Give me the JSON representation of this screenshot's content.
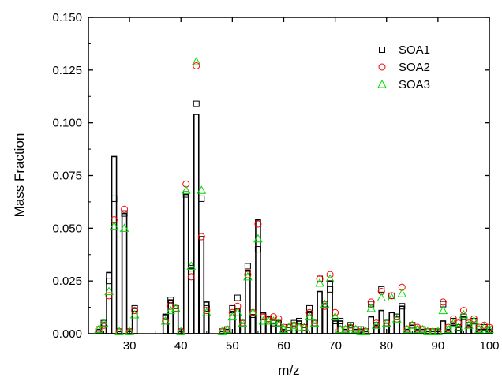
{
  "chart_data": {
    "type": "bar",
    "xlabel": "m/z",
    "ylabel": "Mass Fraction",
    "xlim": [
      22,
      100
    ],
    "ylim": [
      0,
      0.15
    ],
    "x_ticks": [
      "30",
      "40",
      "50",
      "60",
      "70",
      "80",
      "90",
      "100"
    ],
    "y_ticks": [
      "0.000",
      "0.025",
      "0.050",
      "0.075",
      "0.100",
      "0.125",
      "0.150"
    ],
    "grid": false,
    "legend_position": "top-right",
    "bars": {
      "description_series": "SOA1",
      "x": [
        24,
        25,
        26,
        27,
        28,
        29,
        30,
        31,
        37,
        38,
        39,
        40,
        41,
        42,
        43,
        44,
        45,
        48,
        49,
        50,
        51,
        52,
        53,
        54,
        55,
        56,
        57,
        58,
        59,
        60,
        61,
        62,
        63,
        64,
        65,
        66,
        67,
        68,
        69,
        70,
        71,
        72,
        73,
        74,
        75,
        76,
        77,
        78,
        79,
        80,
        81,
        82,
        83,
        84,
        85,
        86,
        87,
        88,
        89,
        90,
        91,
        92,
        93,
        94,
        95,
        96,
        97,
        98,
        99,
        100
      ],
      "values": [
        0.002,
        0.005,
        0.029,
        0.084,
        0.001,
        0.057,
        0.001,
        0.012,
        0.009,
        0.016,
        0.012,
        0.001,
        0.066,
        0.031,
        0.104,
        0.046,
        0.015,
        0.001,
        0.002,
        0.01,
        0.012,
        0.005,
        0.03,
        0.009,
        0.054,
        0.01,
        0.008,
        0.005,
        0.006,
        0.002,
        0.003,
        0.005,
        0.006,
        0.003,
        0.01,
        0.005,
        0.02,
        0.014,
        0.025,
        0.006,
        0.006,
        0.002,
        0.004,
        0.002,
        0.002,
        0.001,
        0.008,
        0.004,
        0.011,
        0.005,
        0.01,
        0.008,
        0.013,
        0.002,
        0.004,
        0.002,
        0.002,
        0.001,
        0.001,
        0.001,
        0.006,
        0.002,
        0.004,
        0.003,
        0.008,
        0.004,
        0.005,
        0.002,
        0.002,
        0.002
      ]
    },
    "series": [
      {
        "name": "SOA1",
        "marker": "square",
        "color": "#000000",
        "x": [
          24,
          25,
          26,
          27,
          28,
          29,
          30,
          31,
          37,
          38,
          39,
          40,
          41,
          42,
          43,
          44,
          45,
          48,
          49,
          50,
          51,
          52,
          53,
          54,
          55,
          56,
          57,
          58,
          59,
          60,
          61,
          62,
          63,
          64,
          65,
          66,
          67,
          68,
          69,
          70,
          71,
          72,
          73,
          74,
          75,
          76,
          77,
          78,
          79,
          80,
          81,
          82,
          83,
          84,
          85,
          86,
          87,
          88,
          89,
          90,
          91,
          92,
          93,
          94,
          95,
          96,
          97,
          98,
          99,
          100
        ],
        "values": [
          0.002,
          0.005,
          0.025,
          0.064,
          0.001,
          0.057,
          0.001,
          0.012,
          0.008,
          0.016,
          0.012,
          0.001,
          0.066,
          0.031,
          0.109,
          0.064,
          0.012,
          0.001,
          0.002,
          0.012,
          0.017,
          0.005,
          0.032,
          0.009,
          0.04,
          0.008,
          0.007,
          0.005,
          0.005,
          0.002,
          0.003,
          0.005,
          0.006,
          0.003,
          0.012,
          0.005,
          0.026,
          0.014,
          0.021,
          0.006,
          0.006,
          0.002,
          0.004,
          0.002,
          0.002,
          0.001,
          0.014,
          0.004,
          0.021,
          0.005,
          0.018,
          0.008,
          0.013,
          0.002,
          0.004,
          0.002,
          0.002,
          0.001,
          0.001,
          0.001,
          0.014,
          0.002,
          0.006,
          0.003,
          0.008,
          0.004,
          0.006,
          0.002,
          0.003,
          0.002
        ]
      },
      {
        "name": "SOA2",
        "marker": "circle",
        "color": "#ff0000",
        "x": [
          24,
          25,
          26,
          27,
          28,
          29,
          30,
          31,
          37,
          38,
          39,
          40,
          41,
          42,
          43,
          44,
          45,
          48,
          49,
          50,
          51,
          52,
          53,
          54,
          55,
          56,
          57,
          58,
          59,
          60,
          61,
          62,
          63,
          64,
          65,
          66,
          67,
          68,
          69,
          70,
          71,
          72,
          73,
          74,
          75,
          76,
          77,
          78,
          79,
          80,
          81,
          82,
          83,
          84,
          85,
          86,
          87,
          88,
          89,
          90,
          91,
          92,
          93,
          94,
          95,
          96,
          97,
          98,
          99,
          100
        ],
        "values": [
          0.002,
          0.004,
          0.018,
          0.054,
          0.001,
          0.059,
          0.001,
          0.011,
          0.006,
          0.013,
          0.012,
          0.001,
          0.071,
          0.027,
          0.127,
          0.046,
          0.011,
          0.001,
          0.002,
          0.01,
          0.013,
          0.005,
          0.028,
          0.01,
          0.052,
          0.008,
          0.007,
          0.008,
          0.007,
          0.003,
          0.003,
          0.004,
          0.003,
          0.003,
          0.01,
          0.005,
          0.026,
          0.013,
          0.028,
          0.01,
          0.002,
          0.002,
          0.003,
          0.002,
          0.001,
          0.001,
          0.015,
          0.005,
          0.02,
          0.005,
          0.018,
          0.007,
          0.022,
          0.002,
          0.004,
          0.003,
          0.002,
          0.001,
          0.001,
          0.001,
          0.015,
          0.003,
          0.007,
          0.005,
          0.011,
          0.005,
          0.007,
          0.003,
          0.004,
          0.003
        ]
      },
      {
        "name": "SOA3",
        "marker": "triangle",
        "color": "#00dd00",
        "x": [
          24,
          25,
          26,
          27,
          28,
          29,
          30,
          31,
          37,
          38,
          39,
          40,
          41,
          42,
          43,
          44,
          45,
          48,
          49,
          50,
          51,
          52,
          53,
          54,
          55,
          56,
          57,
          58,
          59,
          60,
          61,
          62,
          63,
          64,
          65,
          66,
          67,
          68,
          69,
          70,
          71,
          72,
          73,
          74,
          75,
          76,
          77,
          78,
          79,
          80,
          81,
          82,
          83,
          84,
          85,
          86,
          87,
          88,
          89,
          90,
          91,
          92,
          93,
          94,
          95,
          96,
          97,
          98,
          99,
          100
        ],
        "values": [
          0.002,
          0.005,
          0.02,
          0.051,
          0.001,
          0.05,
          0.001,
          0.009,
          0.006,
          0.011,
          0.012,
          0.001,
          0.068,
          0.032,
          0.129,
          0.068,
          0.01,
          0.001,
          0.002,
          0.008,
          0.01,
          0.005,
          0.027,
          0.01,
          0.045,
          0.006,
          0.006,
          0.006,
          0.005,
          0.002,
          0.003,
          0.004,
          0.003,
          0.003,
          0.008,
          0.005,
          0.024,
          0.014,
          0.026,
          0.008,
          0.002,
          0.002,
          0.003,
          0.002,
          0.001,
          0.001,
          0.012,
          0.004,
          0.017,
          0.005,
          0.017,
          0.007,
          0.019,
          0.002,
          0.004,
          0.002,
          0.002,
          0.001,
          0.001,
          0.001,
          0.011,
          0.002,
          0.005,
          0.003,
          0.009,
          0.004,
          0.006,
          0.002,
          0.003,
          0.002
        ]
      }
    ]
  }
}
